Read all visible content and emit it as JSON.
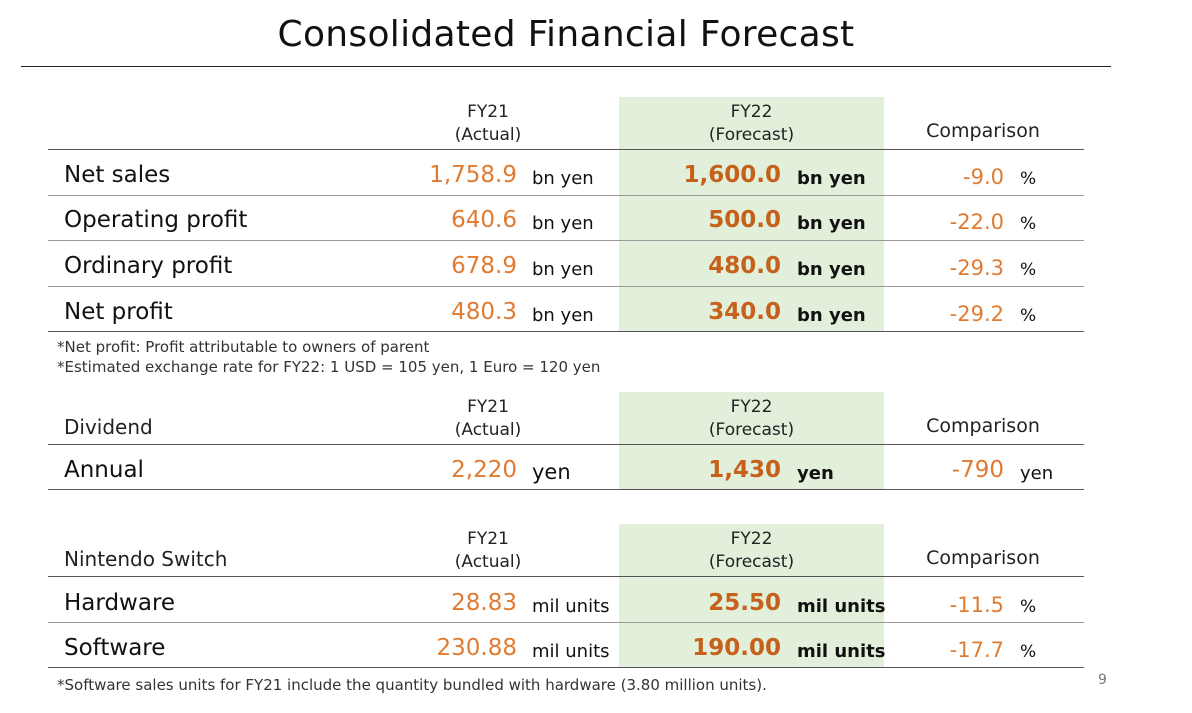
{
  "title": "Consolidated Financial Forecast",
  "headers": {
    "fy21_line1": "FY21",
    "fy21_line2": "(Actual)",
    "fy22_line1": "FY22",
    "fy22_line2": "(Forecast)",
    "comparison": "Comparison"
  },
  "financials": {
    "rows": [
      {
        "label": "Net sales",
        "fy21": "1,758.9",
        "fy21_unit": "bn yen",
        "fy22": "1,600.0",
        "fy22_unit": "bn yen",
        "cmp": "-9.0",
        "cmp_unit": "%"
      },
      {
        "label": "Operating profit",
        "fy21": "640.6",
        "fy21_unit": "bn yen",
        "fy22": "500.0",
        "fy22_unit": "bn yen",
        "cmp": "-22.0",
        "cmp_unit": "%"
      },
      {
        "label": "Ordinary profit",
        "fy21": "678.9",
        "fy21_unit": "bn yen",
        "fy22": "480.0",
        "fy22_unit": "bn yen",
        "cmp": "-29.3",
        "cmp_unit": "%"
      },
      {
        "label": "Net profit",
        "fy21": "480.3",
        "fy21_unit": "bn yen",
        "fy22": "340.0",
        "fy22_unit": "bn yen",
        "cmp": "-29.2",
        "cmp_unit": "%"
      }
    ],
    "notes": [
      "*Net profit: Profit attributable to owners of parent",
      "*Estimated exchange rate for FY22: 1 USD = 105 yen, 1 Euro = 120 yen"
    ]
  },
  "dividend": {
    "label": "Dividend",
    "rows": [
      {
        "label": "Annual",
        "fy21": "2,220",
        "fy21_unit": "yen",
        "fy22": "1,430",
        "fy22_unit": "yen",
        "cmp": "-790",
        "cmp_unit": "yen"
      }
    ]
  },
  "switch": {
    "label": "Nintendo Switch",
    "rows": [
      {
        "label": "Hardware",
        "fy21": "28.83",
        "fy21_unit": "mil units",
        "fy22": "25.50",
        "fy22_unit": "mil units",
        "cmp": "-11.5",
        "cmp_unit": "%"
      },
      {
        "label": "Software",
        "fy21": "230.88",
        "fy21_unit": "mil units",
        "fy22": "190.00",
        "fy22_unit": "mil units",
        "cmp": "-17.7",
        "cmp_unit": "%"
      }
    ],
    "note": "*Software sales units for FY21 include the quantity bundled with hardware (3.80 million units)."
  },
  "page_number": "9",
  "colors": {
    "accent_orange": "#e07b32",
    "accent_orange_dark": "#c5611a",
    "highlight_green": "#e2efda"
  }
}
